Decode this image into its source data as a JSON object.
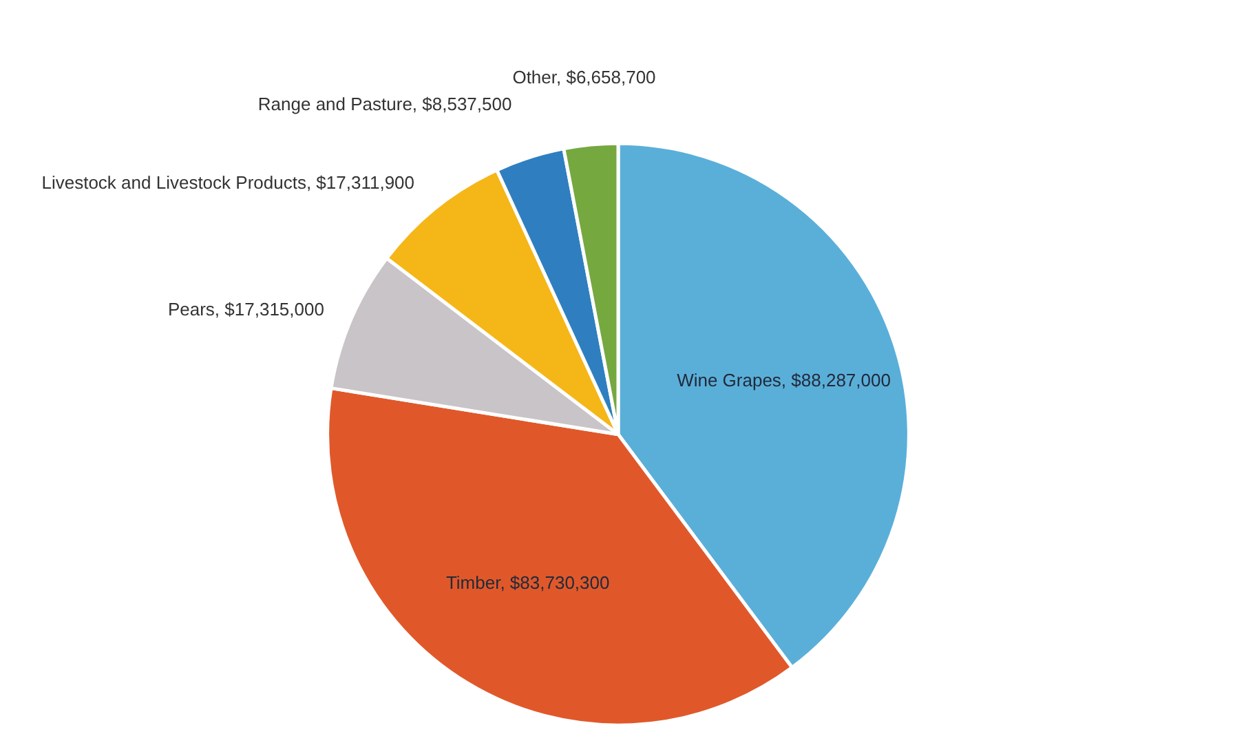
{
  "chart_data": {
    "type": "pie",
    "categories": [
      "Wine Grapes",
      "Timber",
      "Pears",
      "Livestock and Livestock Products",
      "Range and Pasture",
      "Other"
    ],
    "values": [
      88287000,
      83730300,
      17315000,
      17311900,
      8537500,
      6658700
    ],
    "value_labels": [
      "$88,287,000",
      "$83,730,300",
      "$17,315,000",
      "$17,311,900",
      "$8,537,500",
      "$6,658,700"
    ],
    "colors": [
      "#5aafd9",
      "#e0582a",
      "#c9c4c8",
      "#f5b617",
      "#2f7fc0",
      "#76a840"
    ]
  }
}
